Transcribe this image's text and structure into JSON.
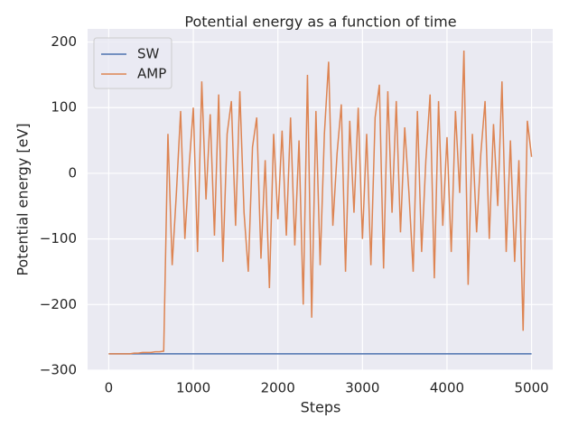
{
  "chart_data": {
    "type": "line",
    "title": "Potential energy as a function of time",
    "x_label": "Steps",
    "y_label": "Potential energy [eV]",
    "x": [
      0,
      50,
      100,
      150,
      200,
      250,
      300,
      350,
      400,
      450,
      500,
      550,
      600,
      650,
      700,
      750,
      800,
      850,
      900,
      950,
      1000,
      1050,
      1100,
      1150,
      1200,
      1250,
      1300,
      1350,
      1400,
      1450,
      1500,
      1550,
      1600,
      1650,
      1700,
      1750,
      1800,
      1850,
      1900,
      1950,
      2000,
      2050,
      2100,
      2150,
      2200,
      2250,
      2300,
      2350,
      2400,
      2450,
      2500,
      2550,
      2600,
      2650,
      2700,
      2750,
      2800,
      2850,
      2900,
      2950,
      3000,
      3050,
      3100,
      3150,
      3200,
      3250,
      3300,
      3350,
      3400,
      3450,
      3500,
      3550,
      3600,
      3650,
      3700,
      3750,
      3800,
      3850,
      3900,
      3950,
      4000,
      4050,
      4100,
      4150,
      4200,
      4250,
      4300,
      4350,
      4400,
      4450,
      4500,
      4550,
      4600,
      4650,
      4700,
      4750,
      4800,
      4850,
      4900,
      4950,
      5000
    ],
    "series": [
      {
        "name": "SW",
        "color": "#4c72b0",
        "values": [
          -275,
          -275,
          -275,
          -275,
          -275,
          -275,
          -275,
          -275,
          -275,
          -275,
          -275,
          -275,
          -275,
          -275,
          -275,
          -275,
          -275,
          -275,
          -275,
          -275,
          -275,
          -275,
          -275,
          -275,
          -275,
          -275,
          -275,
          -275,
          -275,
          -275,
          -275,
          -275,
          -275,
          -275,
          -275,
          -275,
          -275,
          -275,
          -275,
          -275,
          -275,
          -275,
          -275,
          -275,
          -275,
          -275,
          -275,
          -275,
          -275,
          -275,
          -275,
          -275,
          -275,
          -275,
          -275,
          -275,
          -275,
          -275,
          -275,
          -275,
          -275,
          -275,
          -275,
          -275,
          -275,
          -275,
          -275,
          -275,
          -275,
          -275,
          -275,
          -275,
          -275,
          -275,
          -275,
          -275,
          -275,
          -275,
          -275,
          -275,
          -275,
          -275,
          -275,
          -275,
          -275,
          -275,
          -275,
          -275,
          -275,
          -275,
          -275,
          -275,
          -275,
          -275,
          -275,
          -275,
          -275,
          -275,
          -275,
          -275,
          -275
        ]
      },
      {
        "name": "AMP",
        "color": "#dd8452",
        "values": [
          -275,
          -275,
          -275,
          -275,
          -275,
          -275,
          -274,
          -274,
          -273,
          -273,
          -273,
          -272,
          -272,
          -271,
          60,
          -140,
          -30,
          95,
          -100,
          10,
          100,
          -120,
          140,
          -40,
          90,
          -95,
          120,
          -135,
          60,
          110,
          -80,
          125,
          -60,
          -150,
          40,
          85,
          -130,
          20,
          -175,
          60,
          -70,
          65,
          -95,
          85,
          -110,
          50,
          -200,
          150,
          -220,
          95,
          -140,
          60,
          170,
          -80,
          30,
          105,
          -150,
          80,
          -60,
          100,
          -100,
          60,
          -140,
          85,
          135,
          -145,
          125,
          -60,
          110,
          -90,
          70,
          -30,
          -150,
          95,
          -120,
          20,
          120,
          -160,
          110,
          -80,
          55,
          -120,
          95,
          -30,
          187,
          -170,
          60,
          -90,
          30,
          110,
          -100,
          75,
          -50,
          140,
          -120,
          50,
          -135,
          20,
          -240,
          80,
          25
        ]
      }
    ],
    "xlim": [
      -250,
      5250
    ],
    "ylim": [
      -300,
      220
    ],
    "xticks": [
      0,
      1000,
      2000,
      3000,
      4000,
      5000
    ],
    "yticks": [
      {
        "value": -300,
        "label": "−300"
      },
      {
        "value": -200,
        "label": "−200"
      },
      {
        "value": -100,
        "label": "−100"
      },
      0,
      100,
      200
    ],
    "grid": true,
    "legend": "upper left"
  }
}
